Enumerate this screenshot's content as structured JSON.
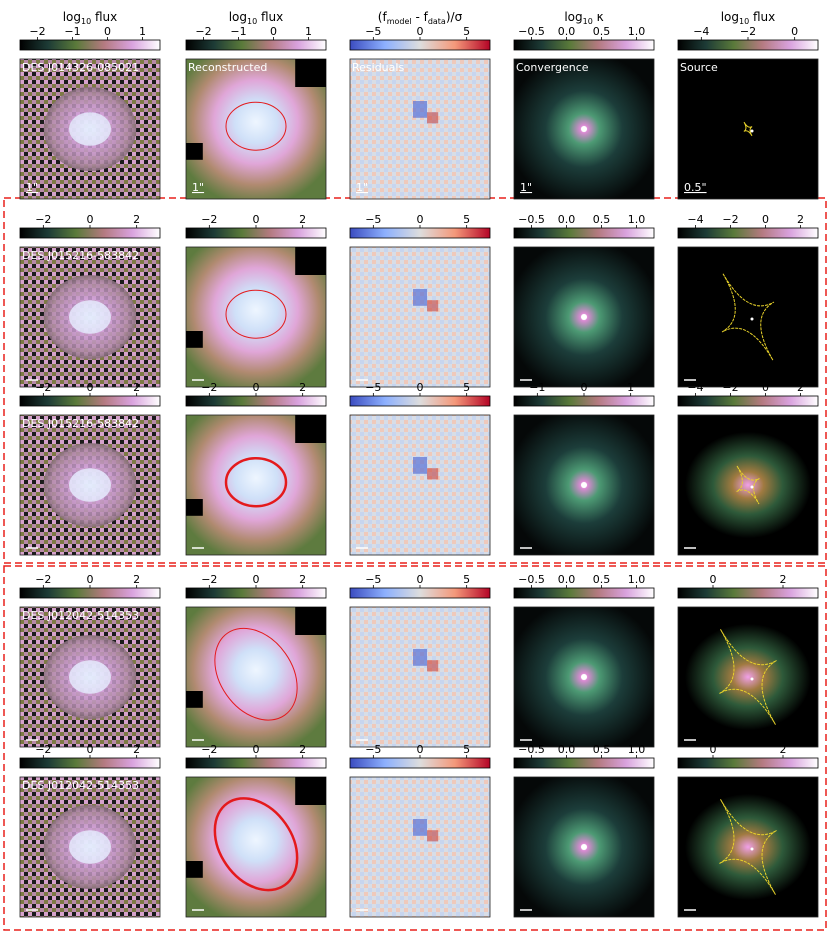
{
  "column_headers": [
    {
      "main": "log",
      "sub": "10",
      "rest": " flux"
    },
    {
      "main": "log",
      "sub": "10",
      "rest": " flux"
    },
    {
      "main": "(f",
      "sub": "model",
      "mid": " - f",
      "sub2": "data",
      "rest": ")/σ"
    },
    {
      "main": "log",
      "sub": "10",
      "rest": " κ"
    },
    {
      "main": "log",
      "sub": "10",
      "rest": " flux"
    }
  ],
  "rows": [
    {
      "name": "DES J014326-085021",
      "tag_recon": "Reconstructed",
      "tag_resid": "Residuals",
      "tag_conv": "Convergence",
      "tag_src": "Source",
      "scale_labels": [
        "1\"",
        "1\"",
        "1\"",
        "1\"",
        "0.5\""
      ],
      "ticks": [
        [
          "−2",
          "−1",
          "0",
          "1"
        ],
        [
          "−2",
          "−1",
          "0",
          "1"
        ],
        [
          "−5",
          "0",
          "5"
        ],
        [
          "−0.5",
          "0.0",
          "0.5",
          "1.0"
        ],
        [
          "−4",
          "−2",
          "0"
        ]
      ]
    },
    {
      "name": "DES J015216-583842",
      "ticks": [
        [
          "−2",
          "0",
          "2"
        ],
        [
          "−2",
          "0",
          "2"
        ],
        [
          "−5",
          "0",
          "5"
        ],
        [
          "−0.5",
          "0.0",
          "0.5",
          "1.0"
        ],
        [
          "−4",
          "−2",
          "0",
          "2"
        ]
      ]
    },
    {
      "name": "DES J015216-583842",
      "ticks": [
        [
          "−2",
          "0",
          "2"
        ],
        [
          "−2",
          "0",
          "2"
        ],
        [
          "−5",
          "0",
          "5"
        ],
        [
          "−1",
          "0",
          "1"
        ],
        [
          "−4",
          "−2",
          "0",
          "2"
        ]
      ]
    },
    {
      "name": "DES J012042-514353",
      "ticks": [
        [
          "−2",
          "0",
          "2"
        ],
        [
          "−2",
          "0",
          "2"
        ],
        [
          "−5",
          "0",
          "5"
        ],
        [
          "−0.5",
          "0.0",
          "0.5",
          "1.0"
        ],
        [
          "0",
          "2"
        ]
      ]
    },
    {
      "name": "DES J012042-514353",
      "ticks": [
        [
          "−2",
          "0",
          "2"
        ],
        [
          "−2",
          "0",
          "2"
        ],
        [
          "−5",
          "0",
          "5"
        ],
        [
          "−0.5",
          "0.0",
          "0.5",
          "1.0"
        ],
        [
          "0",
          "2"
        ]
      ]
    }
  ],
  "colors": {
    "highlight_box": "#e8201c",
    "critical_curve": "#e41a1c",
    "caustic": "#e8d22a"
  }
}
